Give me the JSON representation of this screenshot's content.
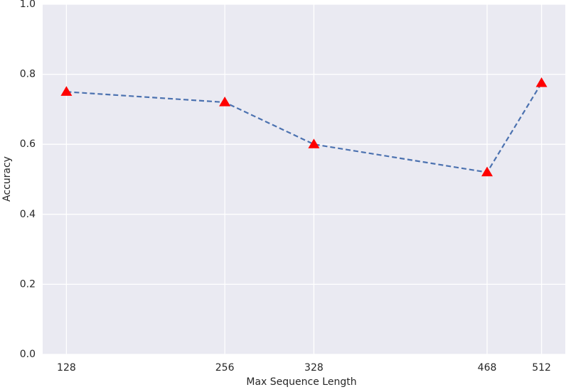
{
  "chart_data": {
    "type": "line",
    "xlabel": "Max Sequence Length",
    "ylabel": "Accuracy",
    "x": [
      128,
      256,
      328,
      468,
      512
    ],
    "series": [
      {
        "name": "Accuracy",
        "color": "#4c72b0",
        "marker_color": "#ff0000",
        "values": [
          0.75,
          0.72,
          0.6,
          0.52,
          0.775
        ]
      }
    ],
    "xlim": [
      108.8,
      531.2
    ],
    "ylim": [
      0,
      1
    ],
    "xticks": [
      128,
      256,
      328,
      468,
      512
    ],
    "yticks": [
      {
        "value": 0,
        "label": "0.0"
      },
      0.2,
      0.4,
      0.6,
      0.8,
      {
        "value": 1,
        "label": "1.0"
      }
    ],
    "grid": true,
    "background": "#eaeaf2"
  }
}
